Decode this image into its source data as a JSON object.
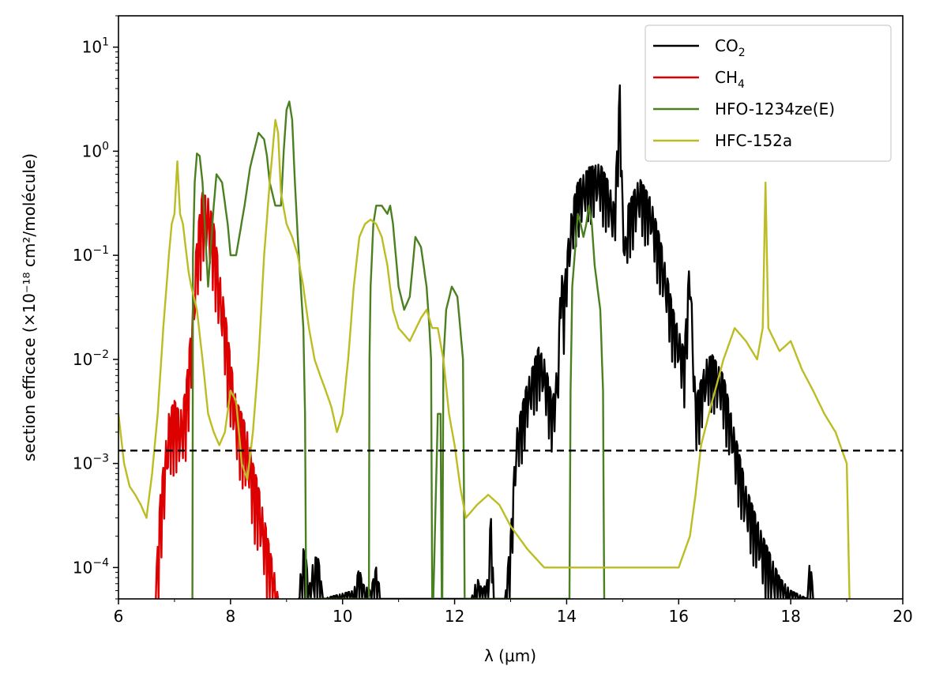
{
  "chart_data": {
    "type": "line",
    "xlabel": "λ (μm)",
    "ylabel": "section efficace (×10⁻¹⁸ cm²/molécule)",
    "xlim": [
      6,
      20
    ],
    "ylim": [
      5e-05,
      20
    ],
    "yscale": "log",
    "x_ticks": [
      6,
      8,
      10,
      12,
      14,
      16,
      18,
      20
    ],
    "y_ticks": [
      {
        "value": 0.0001,
        "base": "10",
        "exp": "−4"
      },
      {
        "value": 0.001,
        "base": "10",
        "exp": "−3"
      },
      {
        "value": 0.01,
        "base": "10",
        "exp": "−2"
      },
      {
        "value": 0.1,
        "base": "10",
        "exp": "−1"
      },
      {
        "value": 1,
        "base": "10",
        "exp": "0"
      },
      {
        "value": 10,
        "base": "10",
        "exp": "1"
      }
    ],
    "grid": false,
    "legend_position": "top-right",
    "reference_line": {
      "y": 0.00133,
      "style": "dashed",
      "color": "#000000"
    },
    "series": [
      {
        "name": "CO₂",
        "legend_main": "CO",
        "legend_sub": "2",
        "color": "#000000",
        "oscillation": 0.55,
        "x": [
          9.2,
          9.3,
          9.35,
          9.4,
          9.45,
          9.55,
          9.6,
          9.65,
          10.2,
          10.3,
          10.35,
          10.5,
          10.6,
          10.7,
          12.3,
          12.4,
          12.5,
          12.6,
          12.65,
          12.7,
          12.9,
          13.0,
          13.1,
          13.3,
          13.5,
          13.6,
          13.75,
          13.85,
          13.9,
          13.95,
          14.0,
          14.1,
          14.2,
          14.4,
          14.6,
          14.75,
          14.85,
          14.9,
          14.95,
          15.0,
          15.05,
          15.1,
          15.3,
          15.5,
          15.7,
          15.9,
          16.1,
          16.2,
          16.3,
          16.5,
          16.6,
          16.8,
          17.0,
          17.2,
          17.5,
          17.8,
          18.0,
          18.3,
          18.35,
          18.4
        ],
        "y": [
          5e-05,
          0.00015,
          0.00012,
          6e-05,
          0.0001,
          0.00014,
          9e-05,
          5e-05,
          6e-05,
          0.0001,
          7e-05,
          6e-05,
          0.0001,
          5e-05,
          5e-05,
          8e-05,
          6e-05,
          8e-05,
          0.0004,
          5e-05,
          5e-05,
          0.0002,
          0.002,
          0.006,
          0.013,
          0.01,
          0.004,
          0.01,
          0.08,
          0.04,
          0.1,
          0.3,
          0.5,
          0.7,
          0.75,
          0.5,
          0.3,
          1.0,
          4.3,
          0.3,
          0.15,
          0.3,
          0.55,
          0.35,
          0.12,
          0.03,
          0.012,
          0.1,
          0.004,
          0.01,
          0.011,
          0.007,
          0.002,
          0.0006,
          0.0002,
          8e-05,
          6e-05,
          5e-05,
          0.00015,
          5e-05
        ]
      },
      {
        "name": "CH₄",
        "legend_main": "CH",
        "legend_sub": "4",
        "color": "#dd0000",
        "oscillation": 0.7,
        "x": [
          6.65,
          6.75,
          6.9,
          7.0,
          7.1,
          7.2,
          7.3,
          7.4,
          7.5,
          7.6,
          7.7,
          7.8,
          7.9,
          8.0,
          8.1,
          8.2,
          8.3,
          8.4,
          8.5,
          8.6,
          8.7,
          8.8,
          8.85
        ],
        "y": [
          5e-05,
          0.0005,
          0.003,
          0.004,
          0.003,
          0.005,
          0.02,
          0.15,
          0.4,
          0.35,
          0.2,
          0.07,
          0.03,
          0.01,
          0.004,
          0.003,
          0.002,
          0.001,
          0.0006,
          0.0003,
          0.00015,
          8e-05,
          5e-05
        ]
      },
      {
        "name": "HFO-1234ze(E)",
        "legend_main": "HFO-1234ze(E)",
        "legend_sub": "",
        "color": "#4a8020",
        "oscillation": 0,
        "x": [
          7.32,
          7.33,
          7.36,
          7.4,
          7.45,
          7.5,
          7.6,
          7.7,
          7.75,
          7.85,
          7.95,
          8.0,
          8.1,
          8.25,
          8.35,
          8.5,
          8.6,
          8.65,
          8.7,
          8.8,
          8.9,
          8.95,
          9.0,
          9.05,
          9.1,
          9.15,
          9.2,
          9.3,
          9.33,
          9.35,
          9.37,
          10.47,
          10.48,
          10.5,
          10.55,
          10.6,
          10.7,
          10.8,
          10.85,
          10.9,
          11.0,
          11.1,
          11.2,
          11.3,
          11.4,
          11.5,
          11.55,
          11.58,
          11.6,
          11.62,
          11.7,
          11.75,
          11.77,
          11.78,
          11.8,
          11.85,
          11.95,
          12.05,
          12.15,
          12.18,
          12.2,
          14.05,
          14.07,
          14.1,
          14.2,
          14.25,
          14.3,
          14.35,
          14.4,
          14.45,
          14.5,
          14.6,
          14.65,
          14.67
        ],
        "y": [
          5e-05,
          0.1,
          0.5,
          0.95,
          0.9,
          0.5,
          0.05,
          0.3,
          0.6,
          0.5,
          0.2,
          0.1,
          0.1,
          0.3,
          0.7,
          1.5,
          1.3,
          0.9,
          0.5,
          0.3,
          0.3,
          1.0,
          2.5,
          3.0,
          2.0,
          0.5,
          0.15,
          0.02,
          0.003,
          5e-05,
          5e-05,
          5e-05,
          0.01,
          0.05,
          0.2,
          0.3,
          0.3,
          0.25,
          0.3,
          0.2,
          0.05,
          0.03,
          0.04,
          0.15,
          0.12,
          0.05,
          0.02,
          0.01,
          5e-05,
          5e-05,
          0.003,
          0.003,
          5e-05,
          5e-05,
          0.01,
          0.03,
          0.05,
          0.04,
          0.01,
          5e-05,
          5e-05,
          5e-05,
          0.005,
          0.05,
          0.25,
          0.2,
          0.15,
          0.2,
          0.3,
          0.2,
          0.08,
          0.03,
          0.005,
          5e-05
        ]
      },
      {
        "name": "HFC-152a",
        "legend_main": "HFC-152a",
        "legend_sub": "",
        "color": "#bcbd22",
        "oscillation": 0,
        "x": [
          6.0,
          6.1,
          6.2,
          6.3,
          6.4,
          6.5,
          6.6,
          6.7,
          6.8,
          6.9,
          6.95,
          7.0,
          7.05,
          7.1,
          7.15,
          7.25,
          7.3,
          7.4,
          7.5,
          7.6,
          7.7,
          7.8,
          7.9,
          8.0,
          8.1,
          8.2,
          8.3,
          8.4,
          8.5,
          8.6,
          8.7,
          8.8,
          8.85,
          8.9,
          9.0,
          9.1,
          9.2,
          9.3,
          9.4,
          9.5,
          9.6,
          9.7,
          9.8,
          9.9,
          10.0,
          10.1,
          10.2,
          10.3,
          10.4,
          10.5,
          10.6,
          10.7,
          10.8,
          10.9,
          11.0,
          11.2,
          11.4,
          11.5,
          11.6,
          11.7,
          11.8,
          11.9,
          12.0,
          12.1,
          12.2,
          12.4,
          12.6,
          12.8,
          13.0,
          13.3,
          13.6,
          14.0,
          14.4,
          14.8,
          15.2,
          15.6,
          16.0,
          16.2,
          16.3,
          16.4,
          16.6,
          16.8,
          17.0,
          17.2,
          17.4,
          17.5,
          17.55,
          17.6,
          17.8,
          18.0,
          18.2,
          18.4,
          18.6,
          18.8,
          19.0,
          19.05
        ],
        "y": [
          0.003,
          0.001,
          0.0006,
          0.0005,
          0.0004,
          0.0003,
          0.0008,
          0.003,
          0.02,
          0.1,
          0.2,
          0.25,
          0.8,
          0.25,
          0.2,
          0.07,
          0.05,
          0.03,
          0.01,
          0.003,
          0.002,
          0.0015,
          0.002,
          0.005,
          0.004,
          0.001,
          0.0007,
          0.002,
          0.01,
          0.1,
          0.5,
          2.0,
          1.5,
          0.4,
          0.2,
          0.15,
          0.1,
          0.05,
          0.02,
          0.01,
          0.007,
          0.005,
          0.0035,
          0.002,
          0.003,
          0.01,
          0.05,
          0.15,
          0.2,
          0.22,
          0.2,
          0.15,
          0.08,
          0.03,
          0.02,
          0.015,
          0.025,
          0.03,
          0.02,
          0.02,
          0.01,
          0.003,
          0.0015,
          0.0006,
          0.0003,
          0.0004,
          0.0005,
          0.0004,
          0.00025,
          0.00015,
          0.0001,
          0.0001,
          0.0001,
          0.0001,
          0.0001,
          0.0001,
          0.0001,
          0.0002,
          0.0005,
          0.0015,
          0.004,
          0.01,
          0.02,
          0.015,
          0.01,
          0.02,
          0.5,
          0.02,
          0.012,
          0.015,
          0.008,
          0.005,
          0.003,
          0.002,
          0.001,
          5e-05
        ]
      }
    ]
  }
}
